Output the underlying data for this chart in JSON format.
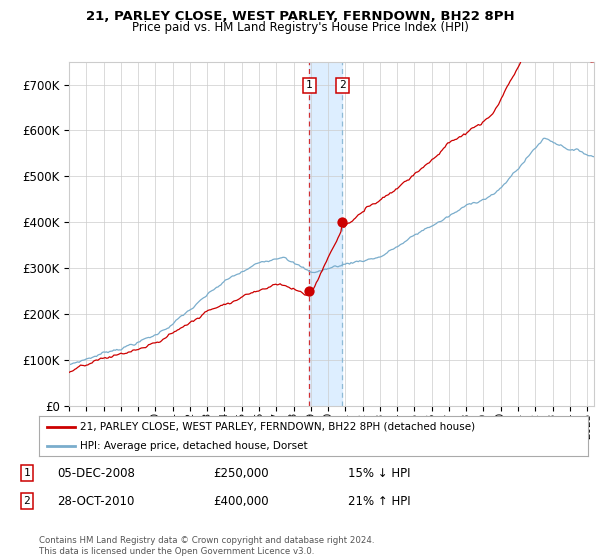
{
  "title": "21, PARLEY CLOSE, WEST PARLEY, FERNDOWN, BH22 8PH",
  "subtitle": "Price paid vs. HM Land Registry's House Price Index (HPI)",
  "legend_entry1": "21, PARLEY CLOSE, WEST PARLEY, FERNDOWN, BH22 8PH (detached house)",
  "legend_entry2": "HPI: Average price, detached house, Dorset",
  "annotation1_date": "05-DEC-2008",
  "annotation1_price": "£250,000",
  "annotation1_hpi": "15% ↓ HPI",
  "annotation2_date": "28-OCT-2010",
  "annotation2_price": "£400,000",
  "annotation2_hpi": "21% ↑ HPI",
  "footnote": "Contains HM Land Registry data © Crown copyright and database right 2024.\nThis data is licensed under the Open Government Licence v3.0.",
  "red_color": "#cc0000",
  "blue_color": "#7aadcc",
  "shaded_color": "#ddeeff",
  "grid_color": "#cccccc",
  "bg_color": "#ffffff",
  "ylim": [
    0,
    750000
  ],
  "yticks": [
    0,
    100000,
    200000,
    300000,
    400000,
    500000,
    600000,
    700000
  ],
  "sale1_year": 2008.92,
  "sale1_price": 250000,
  "sale2_year": 2010.83,
  "sale2_price": 400000,
  "start_year": 1995,
  "end_year": 2025.4
}
